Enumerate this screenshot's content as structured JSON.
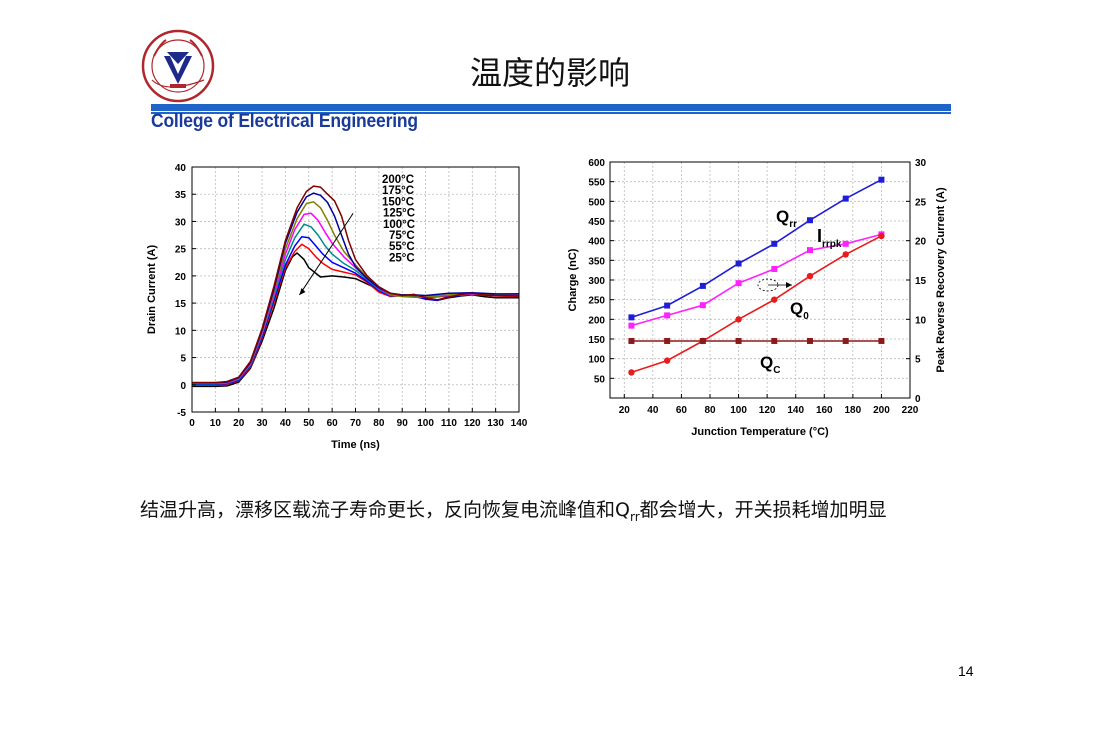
{
  "slide": {
    "title": "温度的影响",
    "college": "College of Electrical Engineering",
    "logo_text": "ZHE JIANG UNIVERSITY",
    "caption_before": "结温升高，漂移区载流子寿命更长，反向恢复电流峰值和Q",
    "caption_sub": "rr",
    "caption_after": "都会增大，开关损耗增加明显",
    "page_number": "14"
  },
  "colors": {
    "rule": "#1f64c8",
    "college_text": "#1a3a9a"
  },
  "chart_data": [
    {
      "type": "line",
      "xlabel": "Time (ns)",
      "ylabel": "Drain Current (A)",
      "xlim": [
        0,
        140
      ],
      "ylim": [
        -5,
        40
      ],
      "xticks": [
        0,
        10,
        20,
        30,
        40,
        50,
        60,
        70,
        80,
        90,
        100,
        110,
        120,
        130,
        140
      ],
      "yticks": [
        -5,
        0,
        5,
        10,
        15,
        20,
        25,
        30,
        35,
        40
      ],
      "grid": true,
      "annotation_labels": [
        "200°C",
        "175°C",
        "150°C",
        "125°C",
        "100°C",
        "75°C",
        "55°C",
        "25°C"
      ],
      "series": [
        {
          "label_ref": "25°C",
          "color": "#000000",
          "x": [
            0,
            10,
            15,
            20,
            25,
            30,
            35,
            40,
            43,
            45,
            48,
            50,
            55,
            60,
            65,
            70,
            75,
            80,
            85,
            90,
            95,
            100,
            105,
            110,
            115,
            120,
            125,
            130,
            140
          ],
          "y": [
            -0.3,
            -0.3,
            -0.2,
            0.5,
            3,
            8,
            14,
            21,
            23.5,
            24.2,
            23,
            21.5,
            19.8,
            20,
            19.8,
            19.5,
            18.5,
            17.5,
            16.5,
            16.3,
            16.2,
            15.8,
            15.5,
            16,
            16.3,
            16.5,
            16.2,
            16,
            16
          ]
        },
        {
          "label_ref": "55°C",
          "color": "#ff0000",
          "x": [
            0,
            10,
            15,
            20,
            25,
            30,
            35,
            40,
            44,
            47,
            50,
            53,
            56,
            60,
            65,
            70,
            75,
            80,
            85,
            90,
            95,
            100,
            110,
            120,
            130,
            140
          ],
          "y": [
            0,
            0,
            0.1,
            0.7,
            3.2,
            8.5,
            15,
            21.5,
            24.5,
            25.8,
            25,
            23.5,
            22.3,
            21.2,
            20.7,
            20.2,
            18.8,
            17,
            16.2,
            16.4,
            16.3,
            16,
            16.3,
            16.6,
            16.3,
            16.2
          ]
        },
        {
          "label_ref": "75°C",
          "color": "#0000ff",
          "x": [
            0,
            10,
            15,
            20,
            25,
            30,
            35,
            40,
            44,
            47,
            50,
            53,
            56,
            60,
            65,
            70,
            75,
            80,
            85,
            90,
            95,
            100,
            105,
            110,
            120,
            130,
            140
          ],
          "y": [
            0.1,
            0.1,
            0.2,
            0.8,
            3.4,
            8.8,
            15.5,
            22,
            25.5,
            27.2,
            27,
            25.5,
            24,
            22.5,
            21.5,
            20.5,
            19,
            17.3,
            16.3,
            16.5,
            16.4,
            15.7,
            15.5,
            16.2,
            16.6,
            16.4,
            16.4
          ]
        },
        {
          "label_ref": "100°C",
          "color": "#008b8b",
          "x": [
            0,
            10,
            15,
            20,
            25,
            30,
            35,
            40,
            44,
            48,
            51,
            54,
            57,
            60,
            65,
            70,
            75,
            80,
            85,
            90,
            95,
            100,
            110,
            120,
            130,
            140
          ],
          "y": [
            0.2,
            0.2,
            0.3,
            1,
            3.6,
            9.2,
            16,
            23,
            27,
            29.5,
            29,
            27.5,
            25.5,
            24,
            22.3,
            21,
            19.3,
            17.5,
            16.4,
            16.3,
            16.1,
            16.1,
            16.4,
            16.6,
            16.5,
            16.4
          ]
        },
        {
          "label_ref": "125°C",
          "color": "#ff00ff",
          "x": [
            0,
            10,
            15,
            20,
            25,
            30,
            35,
            40,
            44,
            48,
            51,
            54,
            57,
            60,
            65,
            70,
            75,
            80,
            85,
            90,
            95,
            100,
            110,
            120,
            130,
            140
          ],
          "y": [
            0.3,
            0.3,
            0.4,
            1.1,
            3.8,
            9.5,
            16.5,
            24,
            28.5,
            31.3,
            31.5,
            30.2,
            28,
            26,
            23.5,
            21.5,
            19.5,
            17.7,
            16.5,
            16.4,
            16.5,
            16.3,
            16.4,
            16.7,
            16.6,
            16.6
          ]
        },
        {
          "label_ref": "150°C",
          "color": "#808000",
          "x": [
            0,
            10,
            15,
            20,
            25,
            30,
            35,
            40,
            45,
            49,
            52,
            55,
            58,
            61,
            65,
            70,
            75,
            80,
            85,
            90,
            95,
            100,
            110,
            120,
            130,
            140
          ],
          "y": [
            0.3,
            0.3,
            0.5,
            1.2,
            4,
            9.8,
            17,
            25,
            30.5,
            33.3,
            33.6,
            32.5,
            30.2,
            27.5,
            24.5,
            22,
            19.8,
            17.9,
            16.6,
            16.2,
            16.1,
            16.1,
            16.5,
            16.8,
            16.6,
            16.7
          ]
        },
        {
          "label_ref": "175°C",
          "color": "#0000a0",
          "x": [
            0,
            10,
            15,
            20,
            25,
            30,
            35,
            40,
            45,
            49,
            52,
            55,
            58,
            61,
            64,
            67,
            70,
            75,
            80,
            85,
            90,
            95,
            100,
            110,
            120,
            130,
            140
          ],
          "y": [
            0.4,
            0.4,
            0.5,
            1.3,
            4.1,
            10,
            17.5,
            26,
            31.7,
            34.5,
            35.2,
            34.8,
            33.5,
            31,
            27.5,
            24,
            21.7,
            19.5,
            17.8,
            16.8,
            16.5,
            16.5,
            16.4,
            16.8,
            16.9,
            16.7,
            16.7
          ]
        },
        {
          "label_ref": "200°C",
          "color": "#800000",
          "x": [
            0,
            10,
            15,
            20,
            25,
            30,
            35,
            40,
            45,
            49,
            52,
            55,
            58,
            61,
            64,
            67,
            70,
            75,
            80,
            85,
            90,
            95,
            100,
            105,
            110,
            115,
            120,
            125,
            130,
            140
          ],
          "y": [
            0.4,
            0.4,
            0.6,
            1.4,
            4.3,
            10.3,
            18,
            26.5,
            32.5,
            35.5,
            36.5,
            36.3,
            35,
            33.8,
            31,
            26.5,
            23,
            20,
            18,
            16.8,
            16.4,
            16.6,
            16,
            15.6,
            16.1,
            16.6,
            16.8,
            16.5,
            16.4,
            16.3
          ]
        }
      ]
    },
    {
      "type": "line",
      "xlabel": "Junction Temperature (°C)",
      "ylabel": "Charge (nC)",
      "ylabel_right": "Peak Reverse Recovery Current (A)",
      "xlim": [
        10,
        220
      ],
      "ylim": [
        0,
        600
      ],
      "ylim_right": [
        0,
        30
      ],
      "xticks": [
        20,
        40,
        60,
        80,
        100,
        120,
        140,
        160,
        180,
        200,
        220
      ],
      "yticks": [
        50,
        100,
        150,
        200,
        250,
        300,
        350,
        400,
        450,
        500,
        550,
        600
      ],
      "yticks_right": [
        0,
        5,
        10,
        15,
        20,
        25,
        30
      ],
      "grid": true,
      "x": [
        25,
        50,
        75,
        100,
        125,
        150,
        175,
        200
      ],
      "series": [
        {
          "name": "Q",
          "sub": "rr",
          "color": "#1e1ed8",
          "marker": "square",
          "axis": "left",
          "y": [
            205,
            235,
            285,
            342,
            392,
            452,
            507,
            555
          ]
        },
        {
          "name": "I",
          "sub": "rrpk",
          "color": "#ff22ff",
          "marker": "square",
          "axis": "right",
          "y": [
            9.2,
            10.5,
            11.8,
            14.6,
            16.4,
            18.8,
            19.6,
            20.8
          ]
        },
        {
          "name": "Q",
          "sub": "0",
          "color": "#e81c1c",
          "marker": "circle",
          "axis": "left",
          "y": [
            65,
            95,
            145,
            200,
            250,
            310,
            365,
            412
          ]
        },
        {
          "name": "Q",
          "sub": "C",
          "color": "#8b1a1a",
          "marker": "square",
          "axis": "left",
          "y": [
            145,
            145,
            145,
            145,
            145,
            145,
            145,
            145
          ]
        }
      ]
    }
  ]
}
